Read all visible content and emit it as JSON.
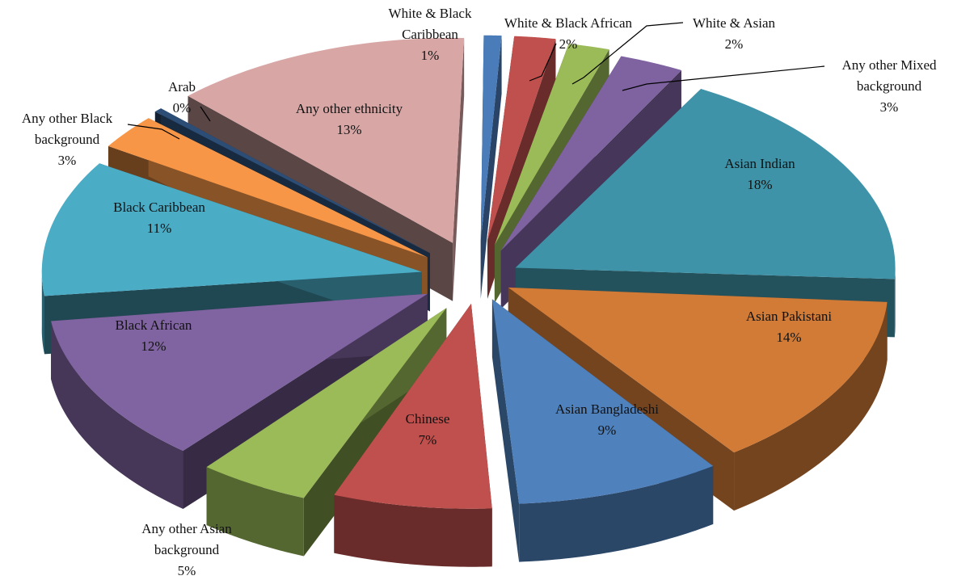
{
  "chart_data": {
    "type": "pie",
    "style": "3d-exploded",
    "title": "",
    "legend": "none",
    "slices": [
      {
        "label": "White & Black Caribbean",
        "value": 1,
        "value_label": "1%",
        "color": "#4a7cb9"
      },
      {
        "label": "White & Black African",
        "value": 2,
        "value_label": "2%",
        "color": "#c0504d"
      },
      {
        "label": "White & Asian",
        "value": 2,
        "value_label": "2%",
        "color": "#9bbb59"
      },
      {
        "label": "Any other Mixed background",
        "value": 3,
        "value_label": "3%",
        "color": "#7f63a1"
      },
      {
        "label": "Asian Indian",
        "value": 18,
        "value_label": "18%",
        "color": "#3f93a8"
      },
      {
        "label": "Asian Pakistani",
        "value": 14,
        "value_label": "14%",
        "color": "#d27b37"
      },
      {
        "label": "Asian Bangladeshi",
        "value": 9,
        "value_label": "9%",
        "color": "#4f81bd"
      },
      {
        "label": "Chinese",
        "value": 7,
        "value_label": "7%",
        "color": "#c0504d"
      },
      {
        "label": "Any other Asian background",
        "value": 5,
        "value_label": "5%",
        "color": "#9bbb59"
      },
      {
        "label": "Black African",
        "value": 12,
        "value_label": "12%",
        "color": "#8064a2"
      },
      {
        "label": "Black Caribbean",
        "value": 11,
        "value_label": "11%",
        "color": "#4bacc6"
      },
      {
        "label": "Any other Black background",
        "value": 3,
        "value_label": "3%",
        "color": "#f79646"
      },
      {
        "label": "Arab",
        "value": 0,
        "value_label": "0%",
        "color": "#2c4d75"
      },
      {
        "label": "Any other ethnicity",
        "value": 13,
        "value_label": "13%",
        "color": "#d9a6a6"
      }
    ]
  }
}
